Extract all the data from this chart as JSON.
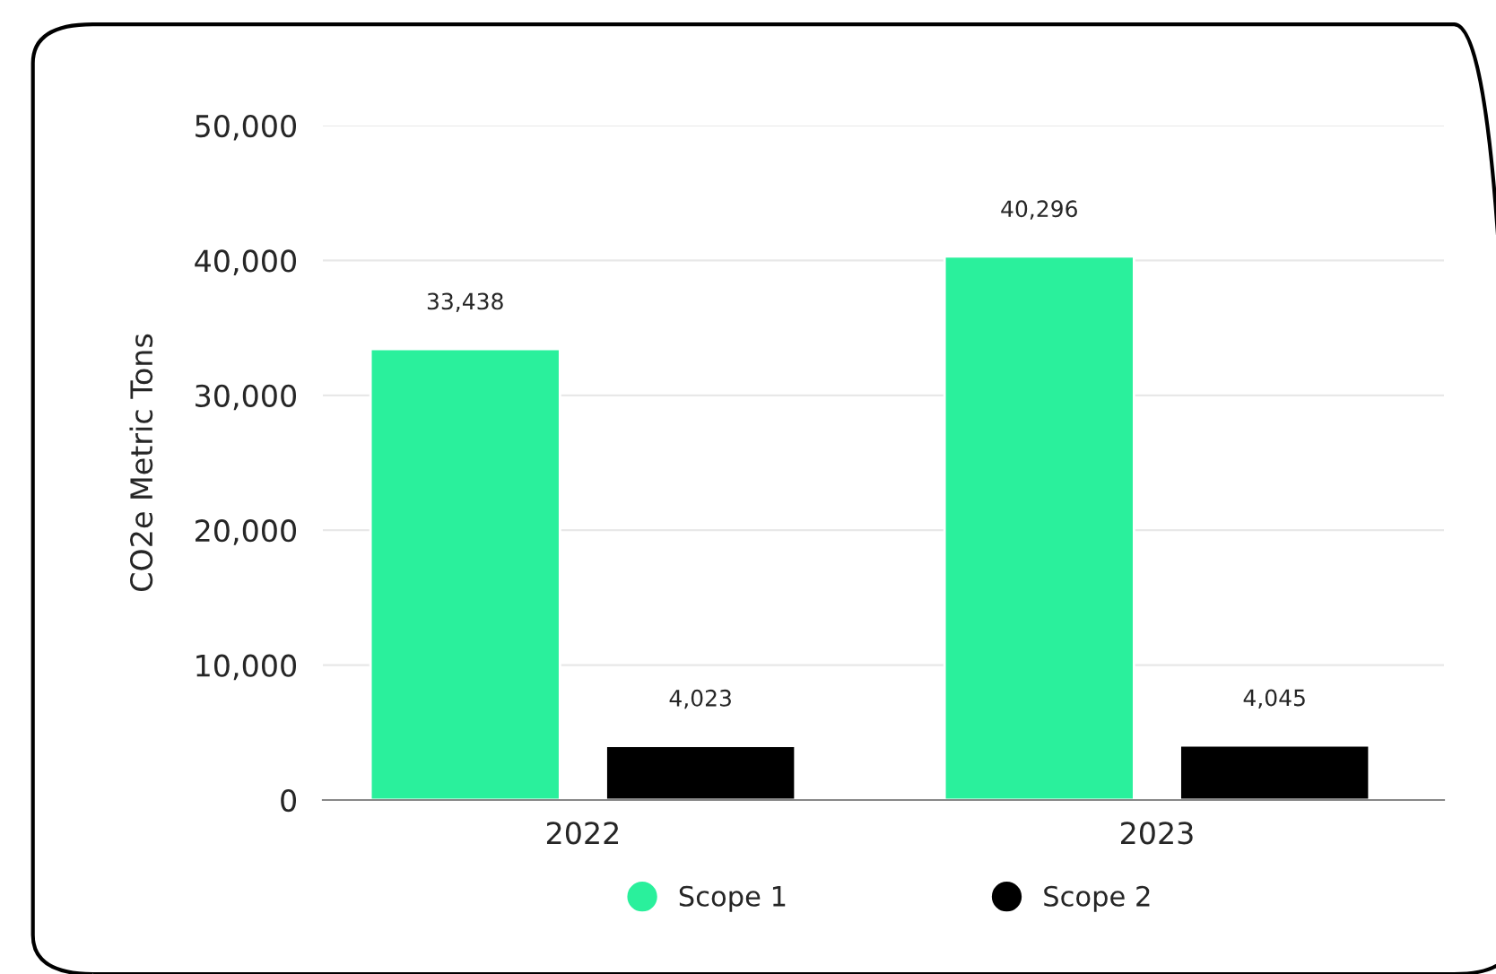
{
  "chart_data": {
    "type": "bar",
    "ylabel": "CO2e Metric Tons",
    "categories": [
      "2022",
      "2023"
    ],
    "series": [
      {
        "name": "Scope 1",
        "color": "#2af09c",
        "values": [
          33438,
          40296
        ]
      },
      {
        "name": "Scope 2",
        "color": "#000000",
        "values": [
          4023,
          4045
        ]
      }
    ],
    "ylim": [
      0,
      50000
    ],
    "yticks": [
      {
        "value": 0,
        "label": "0"
      },
      {
        "value": 10000,
        "label": "10,000"
      },
      {
        "value": 20000,
        "label": "20,000"
      },
      {
        "value": 30000,
        "label": "30,000"
      },
      {
        "value": 40000,
        "label": "40,000"
      },
      {
        "value": 50000,
        "label": "50,000"
      }
    ],
    "grid": "y",
    "legend": "bottom",
    "marker": "circle",
    "value_labels": [
      [
        "33,438",
        "40,296"
      ],
      [
        "4,023",
        "4,045"
      ]
    ]
  }
}
